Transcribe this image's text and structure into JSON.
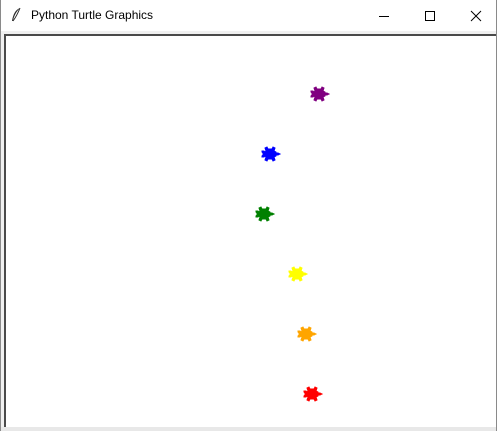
{
  "window": {
    "title": "Python Turtle Graphics",
    "controls": {
      "minimize": "minimize-icon",
      "maximize": "maximize-icon",
      "close": "close-icon"
    }
  },
  "canvas": {
    "background": "#ffffff",
    "turtles": [
      {
        "name": "purple-turtle",
        "color": "#800080",
        "heading": "east"
      },
      {
        "name": "blue-turtle",
        "color": "#0000ff",
        "heading": "east"
      },
      {
        "name": "green-turtle",
        "color": "#008000",
        "heading": "east"
      },
      {
        "name": "yellow-turtle",
        "color": "#ffff00",
        "heading": "east"
      },
      {
        "name": "orange-turtle",
        "color": "#ffa500",
        "heading": "east"
      },
      {
        "name": "red-turtle",
        "color": "#ff0000",
        "heading": "east"
      }
    ]
  }
}
